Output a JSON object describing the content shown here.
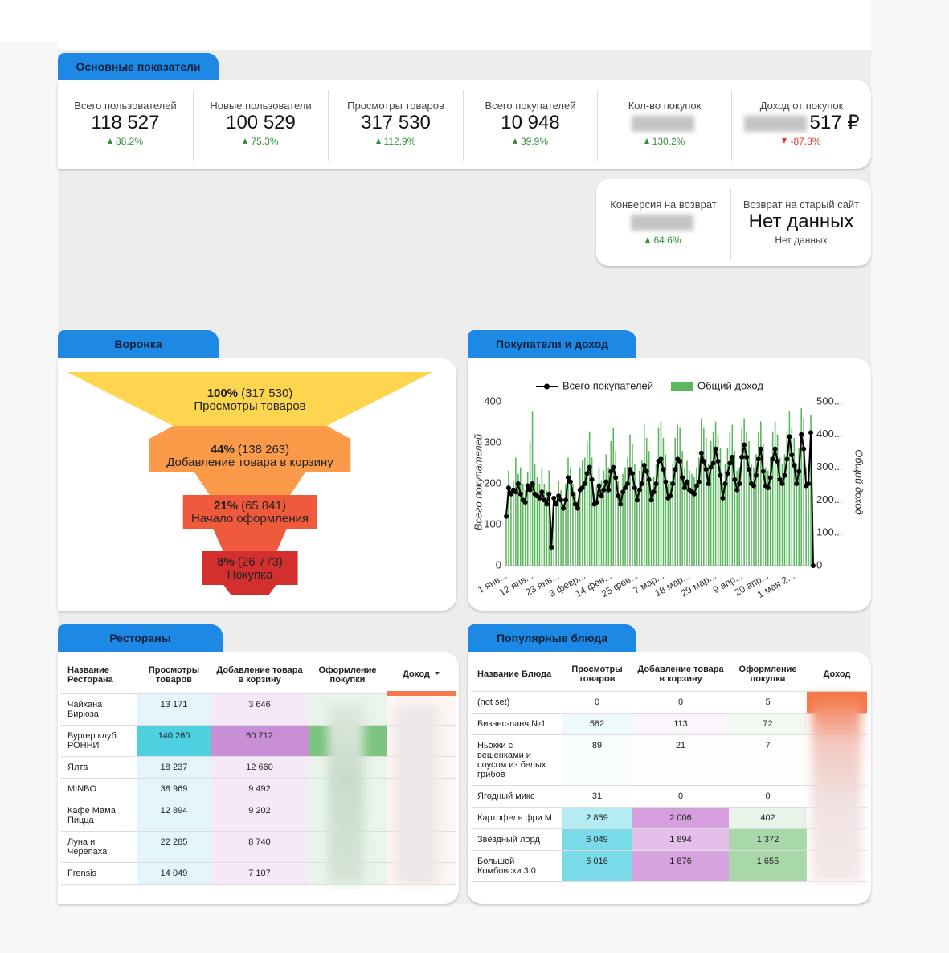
{
  "summary": {
    "title": "Основные показатели",
    "kpis": [
      {
        "label": "Всего пользователей",
        "value": "118 527",
        "change": "88.2%",
        "direction": "up"
      },
      {
        "label": "Новые пользователи",
        "value": "100 529",
        "change": "75.3%",
        "direction": "up"
      },
      {
        "label": "Просмотры товаров",
        "value": "317 530",
        "change": "112.9%",
        "direction": "up"
      },
      {
        "label": "Всего покупателей",
        "value": "10 948",
        "change": "39.9%",
        "direction": "up"
      },
      {
        "label": "Кол-во покупок",
        "blurred": true,
        "change": "130.2%",
        "direction": "up"
      },
      {
        "label": "Доход от покупок",
        "blurred": true,
        "value": "517 ₽",
        "change": "-87.8%",
        "direction": "down"
      }
    ]
  },
  "returns": {
    "kpis": [
      {
        "label": "Конверсия на возврат",
        "blurred": true,
        "change": "64.6%",
        "direction": "up"
      },
      {
        "label": "Возврат на старый сайт",
        "value": "Нет данных",
        "note": "Нет данных"
      }
    ]
  },
  "funnel": {
    "title": "Воронка",
    "steps": [
      {
        "percent": 100,
        "percent_label": "100%",
        "count": "(317 530)",
        "label": "Просмотры товаров",
        "color": "#fdd54f"
      },
      {
        "percent": 44,
        "percent_label": "44%",
        "count": "(138 263)",
        "label": "Добавление товара в корзину",
        "color": "#fb9a48"
      },
      {
        "percent": 21,
        "percent_label": "21%",
        "count": "(65 841)",
        "label": "Начало оформления",
        "color": "#ef5a3c"
      },
      {
        "percent": 8,
        "percent_label": "8%",
        "count": "(26 773)",
        "label": "Покупка",
        "color": "#d32f2f"
      }
    ]
  },
  "chart_data": {
    "type": "combo",
    "title": "Покупатели и доход",
    "categories": [
      "1 янв...",
      null,
      null,
      null,
      null,
      null,
      null,
      null,
      null,
      null,
      null,
      "12 янв...",
      null,
      null,
      null,
      null,
      null,
      null,
      null,
      null,
      null,
      null,
      "23 янв...",
      null,
      null,
      null,
      null,
      null,
      null,
      null,
      null,
      null,
      null,
      "3 февр...",
      null,
      null,
      null,
      null,
      null,
      null,
      null,
      null,
      null,
      null,
      "14 фев...",
      null,
      null,
      null,
      null,
      null,
      null,
      null,
      null,
      null,
      null,
      "25 фев...",
      null,
      null,
      null,
      null,
      null,
      null,
      null,
      null,
      null,
      null,
      "7 мар...",
      null,
      null,
      null,
      null,
      null,
      null,
      null,
      null,
      null,
      null,
      "18 мар...",
      null,
      null,
      null,
      null,
      null,
      null,
      null,
      null,
      null,
      null,
      "29 мар...",
      null,
      null,
      null,
      null,
      null,
      null,
      null,
      null,
      null,
      null,
      "9 апр...",
      null,
      null,
      null,
      null,
      null,
      null,
      null,
      null,
      null,
      null,
      "20 апр...",
      null,
      null,
      null,
      null,
      null,
      null,
      null,
      null,
      null,
      null,
      "1 мая 2...",
      null,
      null,
      null,
      null,
      null,
      null,
      null,
      null
    ],
    "series": [
      {
        "name": "Всего покупателей",
        "type": "line",
        "color": "#000000",
        "values": [
          120,
          190,
          175,
          185,
          180,
          200,
          175,
          160,
          155,
          195,
          185,
          200,
          175,
          170,
          165,
          180,
          160,
          150,
          175,
          45,
          165,
          150,
          170,
          160,
          140,
          160,
          215,
          205,
          175,
          150,
          140,
          185,
          190,
          200,
          225,
          240,
          210,
          150,
          155,
          195,
          170,
          185,
          205,
          185,
          230,
          240,
          215,
          170,
          150,
          180,
          190,
          200,
          235,
          225,
          190,
          160,
          185,
          200,
          245,
          230,
          210,
          160,
          180,
          200,
          255,
          260,
          235,
          205,
          165,
          170,
          200,
          235,
          260,
          255,
          215,
          190,
          205,
          185,
          180,
          175,
          195,
          205,
          275,
          255,
          235,
          200,
          240,
          250,
          285,
          255,
          220,
          165,
          200,
          225,
          250,
          265,
          210,
          185,
          200,
          265,
          295,
          265,
          235,
          200,
          195,
          220,
          260,
          285,
          230,
          195,
          190,
          215,
          260,
          285,
          255,
          210,
          200,
          220,
          260,
          315,
          270,
          245,
          200,
          230,
          320,
          285,
          195,
          200,
          325,
          0
        ]
      },
      {
        "name": "Общий доход",
        "type": "bar",
        "color": "#5cb85f",
        "axis": "y2",
        "values": [
          170,
          290,
          230,
          260,
          330,
          280,
          300,
          250,
          230,
          285,
          380,
          470,
          310,
          270,
          250,
          300,
          250,
          230,
          290,
          60,
          210,
          180,
          260,
          230,
          170,
          250,
          330,
          300,
          250,
          220,
          200,
          300,
          320,
          330,
          380,
          410,
          330,
          220,
          240,
          300,
          260,
          290,
          340,
          300,
          380,
          420,
          350,
          260,
          220,
          280,
          300,
          330,
          400,
          370,
          310,
          230,
          290,
          320,
          430,
          390,
          350,
          230,
          270,
          310,
          420,
          440,
          390,
          340,
          250,
          260,
          310,
          390,
          430,
          420,
          350,
          300,
          320,
          290,
          280,
          270,
          300,
          330,
          450,
          420,
          390,
          310,
          380,
          410,
          440,
          400,
          360,
          250,
          310,
          360,
          410,
          430,
          350,
          290,
          300,
          420,
          450,
          410,
          380,
          310,
          300,
          340,
          410,
          440,
          370,
          300,
          290,
          330,
          410,
          440,
          400,
          330,
          310,
          340,
          410,
          470,
          420,
          390,
          310,
          360,
          480,
          450,
          300,
          310,
          460,
          0
        ]
      }
    ],
    "ylim": [
      0,
      400
    ],
    "yticks": [
      0,
      100,
      200,
      300,
      400
    ],
    "y2lim": [
      0,
      500
    ],
    "y2ticks": [
      0,
      {
        "value": 100,
        "label": "100..."
      },
      {
        "value": 200,
        "label": "200..."
      },
      {
        "value": 300,
        "label": "300..."
      },
      {
        "value": 400,
        "label": "400..."
      },
      {
        "value": 500,
        "label": "500..."
      }
    ],
    "ylabel": "Всего покупателей",
    "y2label": "Общий доход",
    "legend": "top"
  },
  "restaurants": {
    "title": "Рестораны",
    "columns": [
      "Название Ресторана",
      "Просмотры товаров",
      "Добавление товара в корзину",
      "Оформление покупки",
      "Доход"
    ],
    "rows": [
      [
        "Чайхана Бирюза",
        "13 171",
        "3 646"
      ],
      [
        "Бургер клуб РОННИ",
        "140 260",
        "60 712"
      ],
      [
        "Ялта",
        "18 237",
        "12 660"
      ],
      [
        "MINBO",
        "38 969",
        "9 492"
      ],
      [
        "Кафе Мама Пицца",
        "12 894",
        "9 202"
      ],
      [
        "Луна и Черепаха",
        "22 285",
        "8 740"
      ],
      [
        "Frensis",
        "14 049",
        "7 107"
      ]
    ],
    "cell_colors": [
      [
        "#e3f5fa",
        "#f5e8f7",
        "#e9f5ea",
        "#fdf6f3"
      ],
      [
        "#4fd0e0",
        "#c98fd6",
        "#7cc47f",
        "#fdf6f3"
      ],
      [
        "#e3f5fa",
        "#f5e8f7",
        "#e9f5ea",
        "#fdf6f3"
      ],
      [
        "#e3f5fa",
        "#f5e8f7",
        "#e9f5ea",
        "#fdf6f3"
      ],
      [
        "#e3f5fa",
        "#f5e8f7",
        "#e9f5ea",
        "#fdf6f3"
      ],
      [
        "#e3f5fa",
        "#f5e8f7",
        "#e9f5ea",
        "#fdf6f3"
      ],
      [
        "#e3f5fa",
        "#f5e8f7",
        "#e9f5ea",
        "#fdf6f3"
      ]
    ]
  },
  "dishes": {
    "title": "Популярные блюда",
    "columns": [
      "Название Блюда",
      "Просмотры товаров",
      "Добавление товара в корзину",
      "Оформление покупки",
      "Доход"
    ],
    "rows": [
      [
        "(not set)",
        "0",
        "0",
        "5"
      ],
      [
        "Бизнес-ланч №1",
        "582",
        "113",
        "72"
      ],
      [
        "Ньокки с вешенками и соусом из белых грибов",
        "89",
        "21",
        "7"
      ],
      [
        "Ягодный микс",
        "31",
        "0",
        "0"
      ],
      [
        "Картофель фри М",
        "2 859",
        "2 006",
        "402"
      ],
      [
        "Звёздный лорд",
        "6 049",
        "1 894",
        "1 372"
      ],
      [
        "Большой Комбовски 3.0",
        "6 016",
        "1 876",
        "1 655"
      ]
    ],
    "cell_colors": [
      [
        "#ffffff",
        "#ffffff",
        "#ffffff",
        "#f4784b"
      ],
      [
        "#eef9fb",
        "#fbf5fc",
        "#f3f9f3",
        "#ffffff"
      ],
      [
        "#fafdfe",
        "#fefcfe",
        "#fcfefc",
        "#ffffff"
      ],
      [
        "#fcfefe",
        "#ffffff",
        "#ffffff",
        "#ffffff"
      ],
      [
        "#b5ebf2",
        "#d59fdd",
        "#e8f4e9",
        "#ffffff"
      ],
      [
        "#7adbe8",
        "#e3bfe9",
        "#a8d8aa",
        "#ffffff"
      ],
      [
        "#7adbe8",
        "#d6a3de",
        "#a8d8aa",
        "#ffffff"
      ]
    ]
  }
}
